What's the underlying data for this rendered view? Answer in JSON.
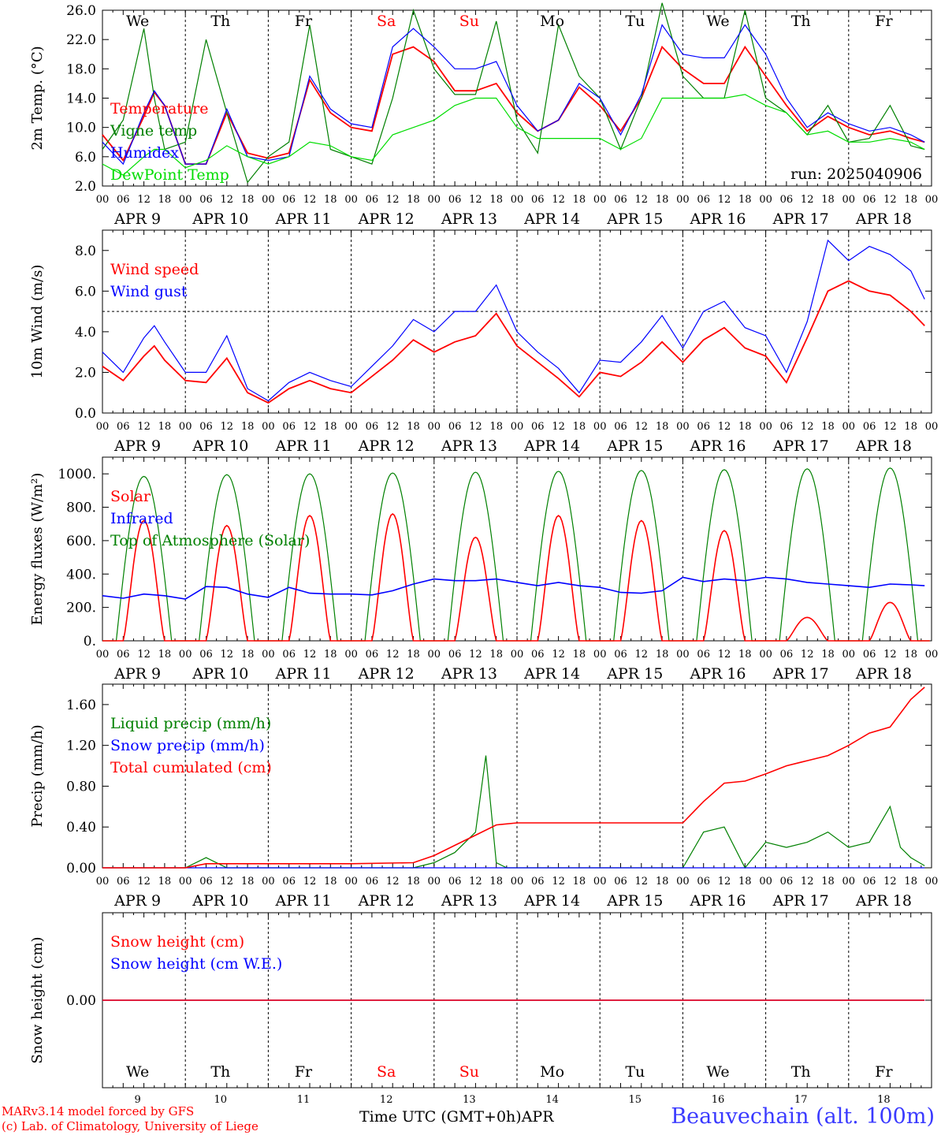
{
  "x_axis": {
    "hour_ticks": [
      "00",
      "06",
      "12",
      "18"
    ],
    "days": [
      {
        "date": "APR  9",
        "num": "9",
        "weekday": "We",
        "weekend": false
      },
      {
        "date": "APR 10",
        "num": "10",
        "weekday": "Th",
        "weekend": false
      },
      {
        "date": "APR 11",
        "num": "11",
        "weekday": "Fr",
        "weekend": false
      },
      {
        "date": "APR 12",
        "num": "12",
        "weekday": "Sa",
        "weekend": true
      },
      {
        "date": "APR 13",
        "num": "13",
        "weekday": "Su",
        "weekend": true
      },
      {
        "date": "APR 14",
        "num": "14",
        "weekday": "Mo",
        "weekend": false
      },
      {
        "date": "APR 15",
        "num": "15",
        "weekday": "Tu",
        "weekend": false
      },
      {
        "date": "APR 16",
        "num": "16",
        "weekday": "We",
        "weekend": false
      },
      {
        "date": "APR 17",
        "num": "17",
        "weekday": "Th",
        "weekend": false
      },
      {
        "date": "APR 18",
        "num": "18",
        "weekday": "Fr",
        "weekend": false
      }
    ],
    "title": "Time UTC (GMT+0h)",
    "month": "APR"
  },
  "footer": {
    "model": "MARv3.14 model forced by GFS",
    "lab": "(c) Lab. of Climatology, University of Liege",
    "station": "Beauvechain (alt. 100m)"
  },
  "colors": {
    "red": "#ff0000",
    "blue": "#0000ff",
    "green": "#008000",
    "lightgreen": "#00dd00",
    "weekend": "#ff0000"
  },
  "chart_data": [
    {
      "type": "line",
      "ylabel": "2m Temp. (°C)",
      "ylim": [
        2.0,
        26.0
      ],
      "yticks": [
        2.0,
        6.0,
        10.0,
        14.0,
        18.0,
        22.0,
        26.0
      ],
      "ytick_labels": [
        "2.0",
        "6.0",
        "10.0",
        "14.0",
        "18.0",
        "22.0",
        "26.0"
      ],
      "annotation": "run: 2025040906",
      "x_hours": [
        0,
        6,
        12,
        15,
        18,
        24,
        30,
        36,
        42,
        48,
        54,
        60,
        66,
        72,
        78,
        84,
        90,
        96,
        102,
        108,
        114,
        120,
        126,
        132,
        138,
        144,
        150,
        156,
        162,
        168,
        174,
        180,
        186,
        192,
        198,
        204,
        210,
        216,
        222,
        228,
        234,
        238
      ],
      "series": [
        {
          "name": "Temperature",
          "color": "red",
          "values": [
            9.0,
            5.5,
            11.5,
            14.8,
            13.0,
            5.0,
            5.0,
            12.0,
            6.5,
            5.8,
            6.5,
            16.5,
            12.0,
            10.0,
            9.5,
            20.0,
            21.0,
            19.0,
            15.0,
            15.0,
            16.0,
            12.0,
            9.5,
            11.0,
            15.5,
            13.0,
            9.5,
            14.0,
            21.0,
            18.0,
            16.0,
            16.0,
            21.0,
            17.0,
            13.0,
            9.5,
            11.5,
            10.0,
            9.0,
            9.5,
            8.5,
            8.0
          ]
        },
        {
          "name": "Vigne temp",
          "color": "green",
          "values": [
            7.0,
            11.0,
            23.5,
            14.0,
            7.0,
            8.0,
            22.0,
            12.0,
            2.5,
            6.0,
            8.0,
            24.0,
            7.0,
            6.0,
            5.0,
            14.0,
            26.0,
            18.0,
            14.5,
            14.5,
            24.5,
            11.0,
            6.5,
            24.0,
            17.0,
            14.0,
            7.0,
            14.0,
            27.0,
            17.0,
            14.0,
            14.0,
            26.0,
            14.0,
            12.0,
            9.0,
            13.0,
            8.0,
            8.5,
            13.0,
            7.5,
            7.0
          ]
        },
        {
          "name": "Humidex",
          "color": "blue",
          "values": [
            8.0,
            5.0,
            12.0,
            15.0,
            13.0,
            5.0,
            5.0,
            12.5,
            6.0,
            5.5,
            6.0,
            17.0,
            12.5,
            10.5,
            10.0,
            21.0,
            23.5,
            21.0,
            18.0,
            18.0,
            19.0,
            13.0,
            9.5,
            11.0,
            16.0,
            14.0,
            9.0,
            14.5,
            24.0,
            20.0,
            19.5,
            19.5,
            24.0,
            20.0,
            14.0,
            10.0,
            12.0,
            10.5,
            9.5,
            10.0,
            9.0,
            8.0
          ]
        },
        {
          "name": "DewPoint Temp",
          "color": "lightgreen",
          "values": [
            5.0,
            3.5,
            6.0,
            7.0,
            7.0,
            4.5,
            5.5,
            7.5,
            6.0,
            5.0,
            6.0,
            8.0,
            7.5,
            6.0,
            5.5,
            9.0,
            10.0,
            11.0,
            13.0,
            14.0,
            14.0,
            10.0,
            8.5,
            8.5,
            8.5,
            8.5,
            7.0,
            8.5,
            14.0,
            14.0,
            14.0,
            14.0,
            14.5,
            13.0,
            12.0,
            9.0,
            9.5,
            8.0,
            8.0,
            8.5,
            8.0,
            7.0
          ]
        }
      ]
    },
    {
      "type": "line",
      "ylabel": "10m Wind (m/s)",
      "ylim": [
        0.0,
        9.0
      ],
      "yticks": [
        0,
        2,
        4,
        6,
        8
      ],
      "ytick_labels": [
        "0.0",
        "2.0",
        "4.0",
        "6.0",
        "8.0"
      ],
      "reference_line": 5.0,
      "x_hours": [
        0,
        6,
        12,
        15,
        18,
        24,
        30,
        36,
        42,
        48,
        54,
        60,
        66,
        72,
        78,
        84,
        90,
        96,
        102,
        108,
        114,
        120,
        126,
        132,
        138,
        144,
        150,
        156,
        162,
        168,
        174,
        180,
        186,
        192,
        198,
        204,
        210,
        216,
        222,
        228,
        234,
        238
      ],
      "series": [
        {
          "name": "Wind speed",
          "color": "red",
          "values": [
            2.3,
            1.6,
            2.8,
            3.3,
            2.6,
            1.6,
            1.5,
            2.7,
            1.0,
            0.5,
            1.2,
            1.6,
            1.2,
            1.0,
            1.8,
            2.6,
            3.6,
            3.0,
            3.5,
            3.8,
            4.9,
            3.3,
            2.5,
            1.7,
            0.8,
            2.0,
            1.8,
            2.5,
            3.5,
            2.5,
            3.6,
            4.2,
            3.2,
            2.8,
            1.5,
            3.7,
            6.0,
            6.5,
            6.0,
            5.8,
            5.0,
            4.3
          ]
        },
        {
          "name": "Wind gust",
          "color": "blue",
          "values": [
            3.0,
            2.0,
            3.7,
            4.3,
            3.5,
            2.0,
            2.0,
            3.8,
            1.2,
            0.6,
            1.5,
            2.0,
            1.6,
            1.3,
            2.3,
            3.3,
            4.6,
            4.0,
            5.0,
            5.0,
            6.3,
            4.0,
            3.0,
            2.2,
            1.0,
            2.6,
            2.5,
            3.5,
            4.8,
            3.2,
            5.0,
            5.5,
            4.2,
            3.8,
            2.0,
            4.5,
            8.5,
            7.5,
            8.2,
            7.8,
            7.0,
            5.6
          ]
        }
      ]
    },
    {
      "type": "line",
      "ylabel": "Energy fluxes (W/m²)",
      "ylim": [
        0,
        1100
      ],
      "yticks": [
        0,
        200,
        400,
        600,
        800,
        1000
      ],
      "ytick_labels": [
        "0.",
        "200.",
        "400.",
        "600.",
        "800.",
        "1000."
      ],
      "series": [
        {
          "name": "Solar",
          "color": "red",
          "peak_values": [
            720,
            690,
            750,
            760,
            620,
            750,
            720,
            660,
            140,
            230
          ],
          "note": "daytime curve, 0 at night"
        },
        {
          "name": "Infrared",
          "color": "blue",
          "x_hours": [
            0,
            6,
            12,
            18,
            24,
            30,
            36,
            42,
            48,
            54,
            60,
            66,
            72,
            78,
            84,
            90,
            96,
            102,
            108,
            114,
            120,
            126,
            132,
            138,
            144,
            150,
            156,
            162,
            168,
            174,
            180,
            186,
            192,
            198,
            204,
            210,
            216,
            222,
            228,
            234,
            238
          ],
          "values": [
            270,
            255,
            280,
            270,
            250,
            325,
            320,
            280,
            260,
            320,
            285,
            280,
            280,
            275,
            300,
            340,
            370,
            360,
            360,
            370,
            350,
            330,
            350,
            330,
            320,
            290,
            285,
            300,
            380,
            355,
            370,
            360,
            380,
            370,
            350,
            340,
            330,
            320,
            340,
            335,
            330
          ]
        },
        {
          "name": "Top of Atmosphere (Solar)",
          "color": "green",
          "peak_values": [
            985,
            995,
            1000,
            1005,
            1010,
            1015,
            1020,
            1025,
            1030,
            1035
          ],
          "note": "daytime curve 04-20 UTC"
        }
      ]
    },
    {
      "type": "line",
      "ylabel": "Precip (mm/h)",
      "ylim": [
        0.0,
        1.8
      ],
      "yticks": [
        0.0,
        0.4,
        0.8,
        1.2,
        1.6
      ],
      "ytick_labels": [
        "0.00",
        "0.40",
        "0.80",
        "1.20",
        "1.60"
      ],
      "series": [
        {
          "name": "Liquid precip (mm/h)",
          "color": "green",
          "x_hours": [
            0,
            24,
            30,
            36,
            48,
            72,
            90,
            96,
            102,
            108,
            111,
            114,
            117,
            120,
            168,
            174,
            180,
            186,
            192,
            198,
            204,
            210,
            216,
            222,
            228,
            231,
            234,
            238
          ],
          "values": [
            0,
            0,
            0.1,
            0,
            0,
            0,
            0,
            0.05,
            0.15,
            0.35,
            1.1,
            0.05,
            0,
            0,
            0,
            0.35,
            0.4,
            0,
            0.25,
            0.2,
            0.25,
            0.35,
            0.2,
            0.25,
            0.6,
            0.2,
            0.1,
            0.02
          ]
        },
        {
          "name": "Snow precip (mm/h)",
          "color": "blue",
          "x_hours": [
            0,
            238
          ],
          "values": [
            0,
            0
          ]
        },
        {
          "name": "Total cumulated (cm)",
          "color": "red",
          "x_hours": [
            0,
            24,
            30,
            36,
            48,
            72,
            90,
            96,
            102,
            108,
            114,
            120,
            168,
            174,
            180,
            186,
            192,
            198,
            204,
            210,
            216,
            222,
            228,
            234,
            238
          ],
          "values": [
            0,
            0,
            0.04,
            0.04,
            0.04,
            0.04,
            0.05,
            0.12,
            0.22,
            0.32,
            0.42,
            0.44,
            0.44,
            0.65,
            0.83,
            0.85,
            0.92,
            1.0,
            1.05,
            1.1,
            1.2,
            1.32,
            1.38,
            1.65,
            1.77
          ]
        }
      ]
    },
    {
      "type": "line",
      "ylabel": "Snow height (cm)",
      "ylim": [
        -1,
        1
      ],
      "yticks": [
        0
      ],
      "ytick_labels": [
        "0.00"
      ],
      "series": [
        {
          "name": "Snow height (cm)",
          "color": "red",
          "x_hours": [
            0,
            238
          ],
          "values": [
            0,
            0
          ]
        },
        {
          "name": "Snow height (cm W.E.)",
          "color": "blue",
          "x_hours": [
            0,
            238
          ],
          "values": [
            0,
            0
          ]
        }
      ]
    }
  ]
}
